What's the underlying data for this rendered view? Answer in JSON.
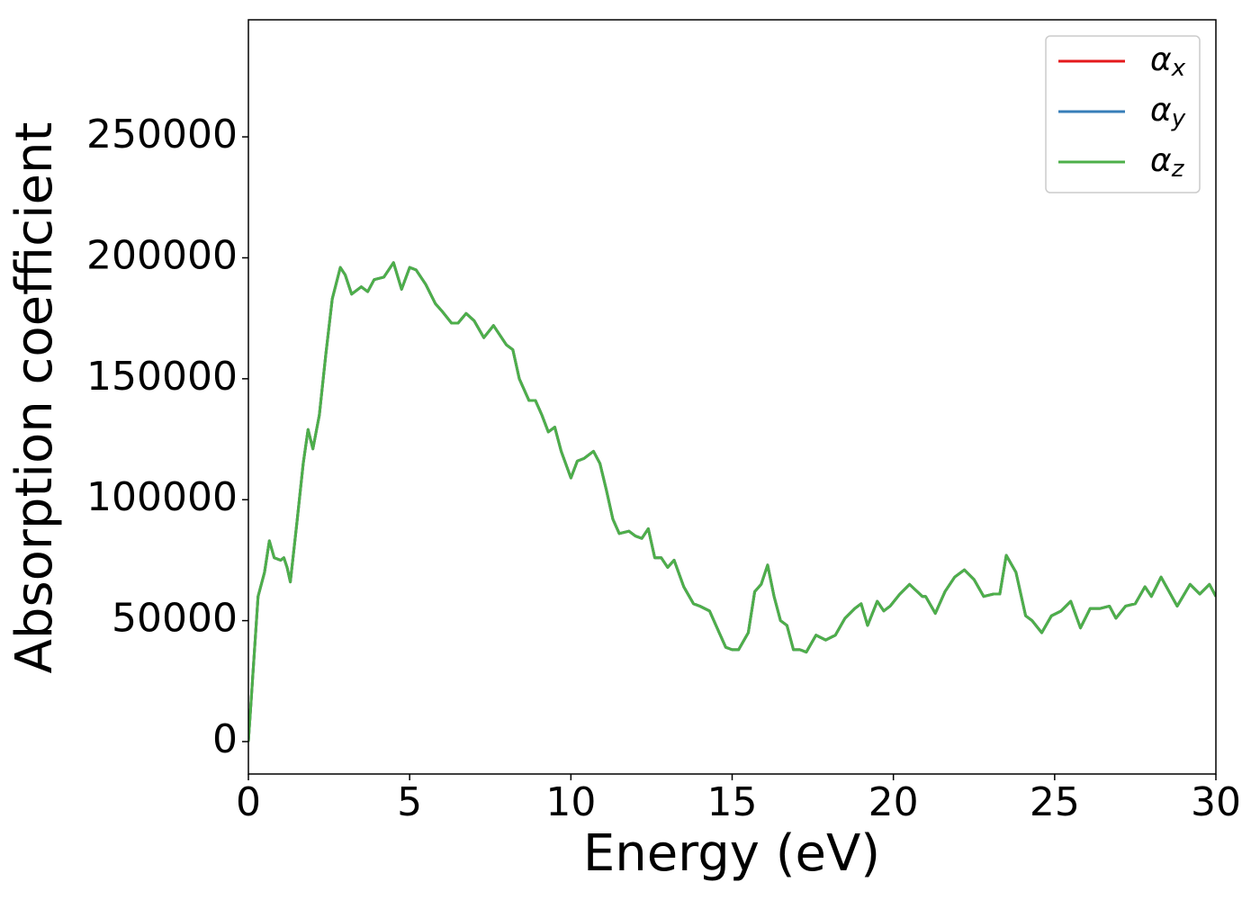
{
  "chart_data": {
    "type": "line",
    "x_label": "Energy (eV)",
    "y_label": "Absorption coefficient",
    "x": [
      0,
      0.1,
      0.3,
      0.5,
      0.65,
      0.8,
      1.0,
      1.1,
      1.2,
      1.3,
      1.5,
      1.7,
      1.85,
      2.0,
      2.2,
      2.4,
      2.6,
      2.85,
      3.0,
      3.2,
      3.5,
      3.7,
      3.9,
      4.2,
      4.5,
      4.75,
      5.0,
      5.2,
      5.5,
      5.8,
      6.0,
      6.3,
      6.5,
      6.75,
      7.0,
      7.3,
      7.6,
      7.8,
      8.0,
      8.2,
      8.4,
      8.7,
      8.9,
      9.1,
      9.3,
      9.5,
      9.7,
      10.0,
      10.2,
      10.4,
      10.7,
      10.9,
      11.1,
      11.3,
      11.5,
      11.8,
      12.0,
      12.2,
      12.4,
      12.6,
      12.8,
      13.0,
      13.2,
      13.5,
      13.8,
      14.0,
      14.3,
      14.5,
      14.8,
      15.0,
      15.2,
      15.5,
      15.7,
      15.9,
      16.1,
      16.3,
      16.5,
      16.7,
      16.9,
      17.1,
      17.3,
      17.6,
      17.9,
      18.2,
      18.5,
      18.8,
      19.0,
      19.2,
      19.5,
      19.7,
      19.9,
      20.2,
      20.5,
      20.9,
      21.0,
      21.3,
      21.6,
      21.9,
      22.2,
      22.5,
      22.8,
      23.1,
      23.3,
      23.5,
      23.8,
      24.1,
      24.3,
      24.6,
      24.9,
      25.2,
      25.5,
      25.8,
      26.1,
      26.4,
      26.7,
      26.9,
      27.2,
      27.5,
      27.8,
      28.0,
      28.3,
      28.8,
      29.2,
      29.5,
      29.8,
      30.0
    ],
    "series": [
      {
        "name": "αx",
        "color": "#e41a1c",
        "values": [
          0,
          20000,
          60000,
          70000,
          83000,
          76000,
          75000,
          76000,
          72000,
          66000,
          90000,
          115000,
          129000,
          121000,
          135000,
          160000,
          183000,
          196000,
          193000,
          185000,
          188000,
          186000,
          191000,
          192000,
          198000,
          187000,
          196000,
          195000,
          189000,
          181000,
          178000,
          173000,
          173000,
          177000,
          174000,
          167000,
          172000,
          168000,
          164000,
          162000,
          150000,
          141000,
          141000,
          135000,
          128000,
          130000,
          120000,
          109000,
          116000,
          117000,
          120000,
          115000,
          104000,
          92000,
          86000,
          87000,
          85000,
          84000,
          88000,
          76000,
          76000,
          72000,
          75000,
          64000,
          57000,
          56000,
          54000,
          48000,
          39000,
          38000,
          38000,
          45000,
          62000,
          65000,
          73000,
          60000,
          50000,
          48000,
          38000,
          38000,
          37000,
          44000,
          42000,
          44000,
          51000,
          55000,
          57000,
          48000,
          58000,
          54000,
          56000,
          61000,
          65000,
          60000,
          60000,
          53000,
          62000,
          68000,
          71000,
          67000,
          60000,
          61000,
          61000,
          77000,
          70000,
          52000,
          50000,
          45000,
          52000,
          54000,
          58000,
          47000,
          55000,
          55000,
          56000,
          51000,
          56000,
          57000,
          64000,
          60000,
          68000,
          56000,
          65000,
          61000,
          65000,
          60000
        ]
      },
      {
        "name": "αy",
        "color": "#377eb8",
        "values": [
          0,
          20000,
          60000,
          70000,
          83000,
          76000,
          75000,
          76000,
          72000,
          66000,
          90000,
          115000,
          129000,
          121000,
          135000,
          160000,
          183000,
          196000,
          193000,
          185000,
          188000,
          186000,
          191000,
          192000,
          198000,
          187000,
          196000,
          195000,
          189000,
          181000,
          178000,
          173000,
          173000,
          177000,
          174000,
          167000,
          172000,
          168000,
          164000,
          162000,
          150000,
          141000,
          141000,
          135000,
          128000,
          130000,
          120000,
          109000,
          116000,
          117000,
          120000,
          115000,
          104000,
          92000,
          86000,
          87000,
          85000,
          84000,
          88000,
          76000,
          76000,
          72000,
          75000,
          64000,
          57000,
          56000,
          54000,
          48000,
          39000,
          38000,
          38000,
          45000,
          62000,
          65000,
          73000,
          60000,
          50000,
          48000,
          38000,
          38000,
          37000,
          44000,
          42000,
          44000,
          51000,
          55000,
          57000,
          48000,
          58000,
          54000,
          56000,
          61000,
          65000,
          60000,
          60000,
          53000,
          62000,
          68000,
          71000,
          67000,
          60000,
          61000,
          61000,
          77000,
          70000,
          52000,
          50000,
          45000,
          52000,
          54000,
          58000,
          47000,
          55000,
          55000,
          56000,
          51000,
          56000,
          57000,
          64000,
          60000,
          68000,
          56000,
          65000,
          61000,
          65000,
          60000
        ]
      },
      {
        "name": "αz",
        "color": "#4daf4a",
        "values": [
          0,
          20000,
          60000,
          70000,
          83000,
          76000,
          75000,
          76000,
          72000,
          66000,
          90000,
          115000,
          129000,
          121000,
          135000,
          160000,
          183000,
          196000,
          193000,
          185000,
          188000,
          186000,
          191000,
          192000,
          198000,
          187000,
          196000,
          195000,
          189000,
          181000,
          178000,
          173000,
          173000,
          177000,
          174000,
          167000,
          172000,
          168000,
          164000,
          162000,
          150000,
          141000,
          141000,
          135000,
          128000,
          130000,
          120000,
          109000,
          116000,
          117000,
          120000,
          115000,
          104000,
          92000,
          86000,
          87000,
          85000,
          84000,
          88000,
          76000,
          76000,
          72000,
          75000,
          64000,
          57000,
          56000,
          54000,
          48000,
          39000,
          38000,
          38000,
          45000,
          62000,
          65000,
          73000,
          60000,
          50000,
          48000,
          38000,
          38000,
          37000,
          44000,
          42000,
          44000,
          51000,
          55000,
          57000,
          48000,
          58000,
          54000,
          56000,
          61000,
          65000,
          60000,
          60000,
          53000,
          62000,
          68000,
          71000,
          67000,
          60000,
          61000,
          61000,
          77000,
          70000,
          52000,
          50000,
          45000,
          52000,
          54000,
          58000,
          47000,
          55000,
          55000,
          56000,
          51000,
          56000,
          57000,
          64000,
          60000,
          68000,
          56000,
          65000,
          61000,
          65000,
          60000
        ]
      }
    ],
    "xlim": [
      0,
      30
    ],
    "xticks": [
      0,
      5,
      10,
      15,
      20,
      25,
      30
    ],
    "ylim": [
      -13400,
      298400
    ],
    "yticks": [
      0,
      50000,
      100000,
      150000,
      200000,
      250000
    ],
    "legend": "upper right",
    "grid": false
  }
}
